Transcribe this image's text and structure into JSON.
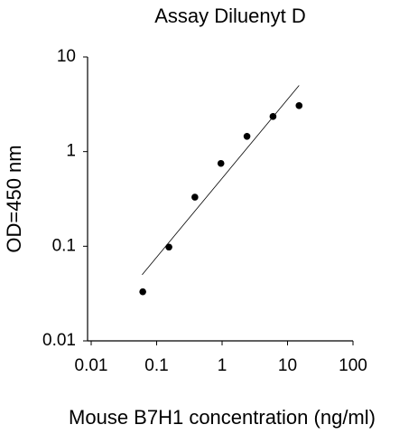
{
  "chart_data": {
    "type": "scatter",
    "title": "Assay Diluenyt D",
    "x_label": "Mouse B7H1 concentration (ng/ml)",
    "y_label": "OD=450 nm",
    "x": [
      0.0614,
      0.154,
      0.384,
      0.96,
      2.4,
      6,
      15
    ],
    "values": [
      0.033,
      0.098,
      0.33,
      0.75,
      1.45,
      2.35,
      3.06
    ],
    "color": "#000000",
    "trendline": {
      "x": [
        0.06,
        15
      ],
      "values": [
        0.05,
        5
      ]
    },
    "xscale": "log",
    "yscale": "log",
    "xlim": [
      0.01,
      100
    ],
    "ylim": [
      0.01,
      10
    ],
    "xticks": [
      0.01,
      0.1,
      1,
      10,
      100
    ],
    "yticks": [
      0.01,
      0.1,
      1,
      10
    ]
  }
}
